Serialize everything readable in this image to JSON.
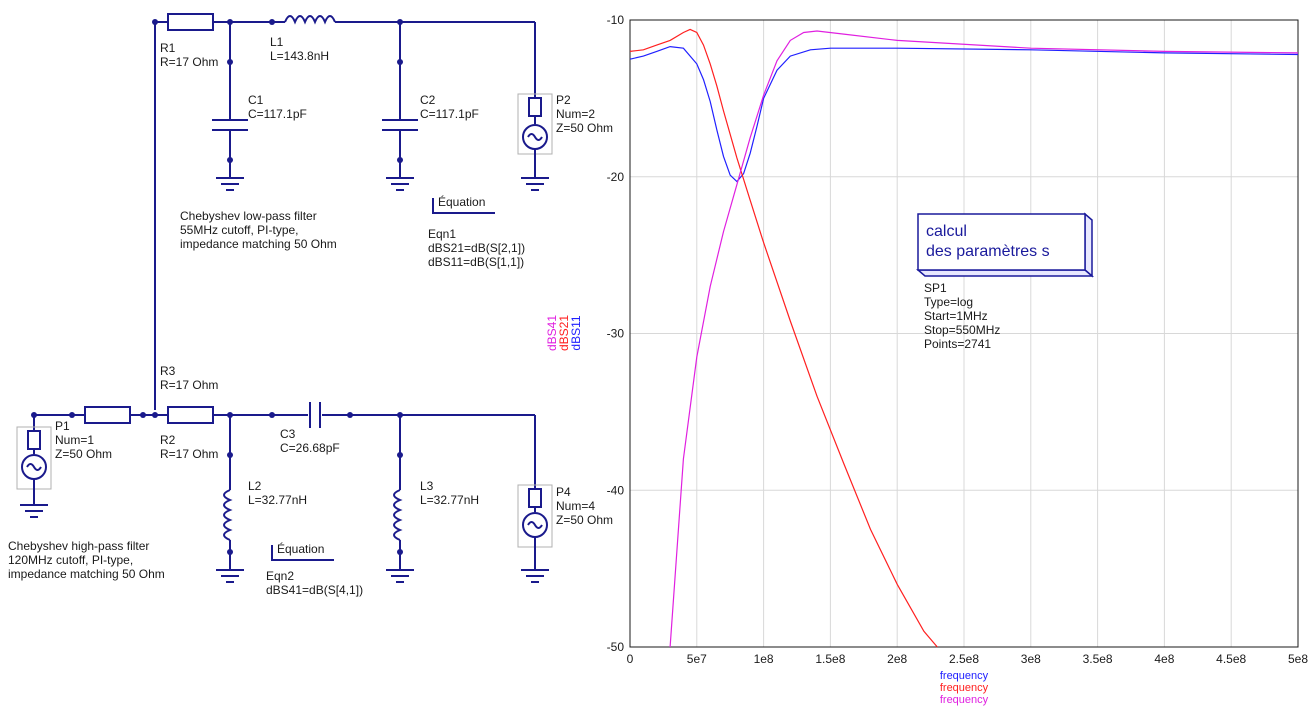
{
  "components": {
    "R1": {
      "name": "R1",
      "value": "R=17 Ohm"
    },
    "L1": {
      "name": "L1",
      "value": "L=143.8nH"
    },
    "C1": {
      "name": "C1",
      "value": "C=117.1pF"
    },
    "C2": {
      "name": "C2",
      "value": "C=117.1pF"
    },
    "P2": {
      "name": "P2",
      "num": "Num=2",
      "z": "Z=50 Ohm"
    },
    "R3": {
      "name": "R3",
      "value": "R=17 Ohm"
    },
    "P1": {
      "name": "P1",
      "num": "Num=1",
      "z": "Z=50 Ohm"
    },
    "R2": {
      "name": "R2",
      "value": "R=17 Ohm"
    },
    "C3": {
      "name": "C3",
      "value": "C=26.68pF"
    },
    "L2": {
      "name": "L2",
      "value": "L=32.77nH"
    },
    "L3": {
      "name": "L3",
      "value": "L=32.77nH"
    },
    "P4": {
      "name": "P4",
      "num": "Num=4",
      "z": "Z=50 Ohm"
    }
  },
  "notes": {
    "lowpass": [
      "Chebyshev low-pass filter",
      "55MHz cutoff, PI-type,",
      "impedance matching 50 Ohm"
    ],
    "highpass": [
      "Chebyshev high-pass filter",
      "120MHz cutoff, PI-type,",
      "impedance matching 50 Ohm"
    ]
  },
  "equations": {
    "eqn1": {
      "header": "Équation",
      "name": "Eqn1",
      "lines": [
        "dBS21=dB(S[2,1])",
        "dBS11=dB(S[1,1])"
      ]
    },
    "eqn2": {
      "header": "Équation",
      "name": "Eqn2",
      "lines": [
        "dBS41=dB(S[4,1])"
      ]
    }
  },
  "sim": {
    "box_lines": [
      "calcul",
      "des paramètres s"
    ],
    "name": "SP1",
    "params": [
      "Type=log",
      "Start=1MHz",
      "Stop=550MHz",
      "Points=2741"
    ]
  },
  "chart_data": {
    "type": "line",
    "xlim": [
      0,
      500000000
    ],
    "ylim": [
      -50,
      -10
    ],
    "x_ticks": [
      "0",
      "5e7",
      "1e8",
      "1.5e8",
      "2e8",
      "2.5e8",
      "3e8",
      "3.5e8",
      "4e8",
      "4.5e8",
      "5e8"
    ],
    "y_ticks": [
      "-10",
      "-20",
      "-30",
      "-40",
      "-50"
    ],
    "xlabels": [
      {
        "text": "frequency",
        "color": "#2020ff"
      },
      {
        "text": "frequency",
        "color": "#ff2020"
      },
      {
        "text": "frequency",
        "color": "#e020e0"
      }
    ],
    "ylabels": [
      {
        "text": "dBS41",
        "color": "#e020e0"
      },
      {
        "text": "dBS21",
        "color": "#ff2020"
      },
      {
        "text": "dBS11",
        "color": "#2020ff"
      }
    ],
    "grid": true,
    "series": [
      {
        "name": "dBS11",
        "color": "#2020ff",
        "x": [
          0,
          10000000,
          20000000,
          30000000,
          40000000,
          50000000,
          55000000,
          60000000,
          65000000,
          70000000,
          75000000,
          80000000,
          85000000,
          90000000,
          95000000,
          100000000,
          110000000,
          120000000,
          135000000,
          150000000,
          200000000,
          300000000,
          400000000,
          500000000
        ],
        "y": [
          -12.5,
          -12.3,
          -12.0,
          -11.7,
          -11.8,
          -12.8,
          -13.8,
          -15.2,
          -17.0,
          -18.7,
          -19.9,
          -20.3,
          -19.8,
          -18.5,
          -16.8,
          -15.0,
          -13.2,
          -12.3,
          -11.9,
          -11.8,
          -11.8,
          -11.9,
          -12.1,
          -12.2
        ]
      },
      {
        "name": "dBS21",
        "color": "#ff2020",
        "x": [
          0,
          10000000,
          20000000,
          30000000,
          40000000,
          45000000,
          50000000,
          55000000,
          60000000,
          65000000,
          70000000,
          80000000,
          90000000,
          100000000,
          120000000,
          140000000,
          160000000,
          180000000,
          200000000,
          220000000,
          230000000
        ],
        "y": [
          -12.0,
          -11.9,
          -11.6,
          -11.3,
          -10.8,
          -10.6,
          -10.8,
          -11.6,
          -12.8,
          -14.2,
          -15.8,
          -18.8,
          -21.5,
          -24.2,
          -29.2,
          -34.0,
          -38.3,
          -42.5,
          -46.0,
          -49.0,
          -50.0
        ]
      },
      {
        "name": "dBS41",
        "color": "#e020e0",
        "x": [
          30000000,
          40000000,
          50000000,
          60000000,
          70000000,
          80000000,
          90000000,
          100000000,
          110000000,
          120000000,
          130000000,
          140000000,
          160000000,
          200000000,
          300000000,
          400000000,
          500000000
        ],
        "y": [
          -50.0,
          -38.0,
          -31.5,
          -27.0,
          -23.5,
          -20.5,
          -17.5,
          -14.8,
          -12.6,
          -11.3,
          -10.8,
          -10.7,
          -10.9,
          -11.3,
          -11.8,
          -12.0,
          -12.1
        ]
      }
    ]
  }
}
